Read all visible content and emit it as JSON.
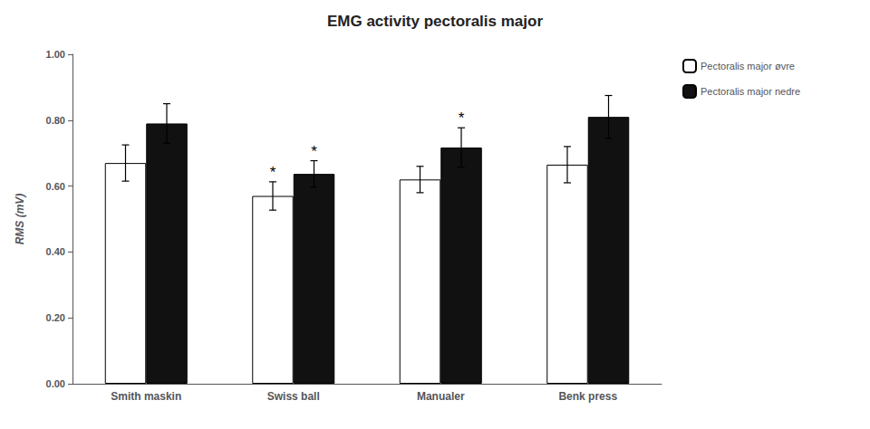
{
  "chart_data": {
    "type": "bar",
    "title": "EMG activity pectoralis major",
    "ylabel": "RMS (mV)",
    "categories": [
      "Smith maskin",
      "Swiss ball",
      "Manualer",
      "Benk press"
    ],
    "series": [
      {
        "name": "Pectoralis major øvre",
        "color": "#ffffff",
        "values": [
          0.67,
          0.57,
          0.62,
          0.665
        ],
        "errors": [
          0.055,
          0.043,
          0.04,
          0.055
        ]
      },
      {
        "name": "Pectoralis major nedre",
        "color": "#111111",
        "values": [
          0.79,
          0.637,
          0.717,
          0.81
        ],
        "errors": [
          0.06,
          0.04,
          0.06,
          0.065
        ]
      }
    ],
    "annotations": [
      {
        "text": "*",
        "category": "Swiss ball",
        "series": "Pectoralis major øvre"
      },
      {
        "text": "*",
        "category": "Swiss ball",
        "series": "Pectoralis major nedre"
      },
      {
        "text": "*",
        "category": "Manualer",
        "series": "Pectoralis major nedre"
      }
    ],
    "ylim": [
      0.0,
      1.0
    ],
    "yticks": [
      {
        "value": 0.0,
        "label": "0.00"
      },
      {
        "value": 0.2,
        "label": "0.20"
      },
      {
        "value": 0.4,
        "label": "0.40"
      },
      {
        "value": 0.6,
        "label": "0.60"
      },
      {
        "value": 0.8,
        "label": "0.80"
      },
      {
        "value": 1.0,
        "label": "1.00"
      }
    ],
    "grid": false,
    "legend": "upper right"
  }
}
